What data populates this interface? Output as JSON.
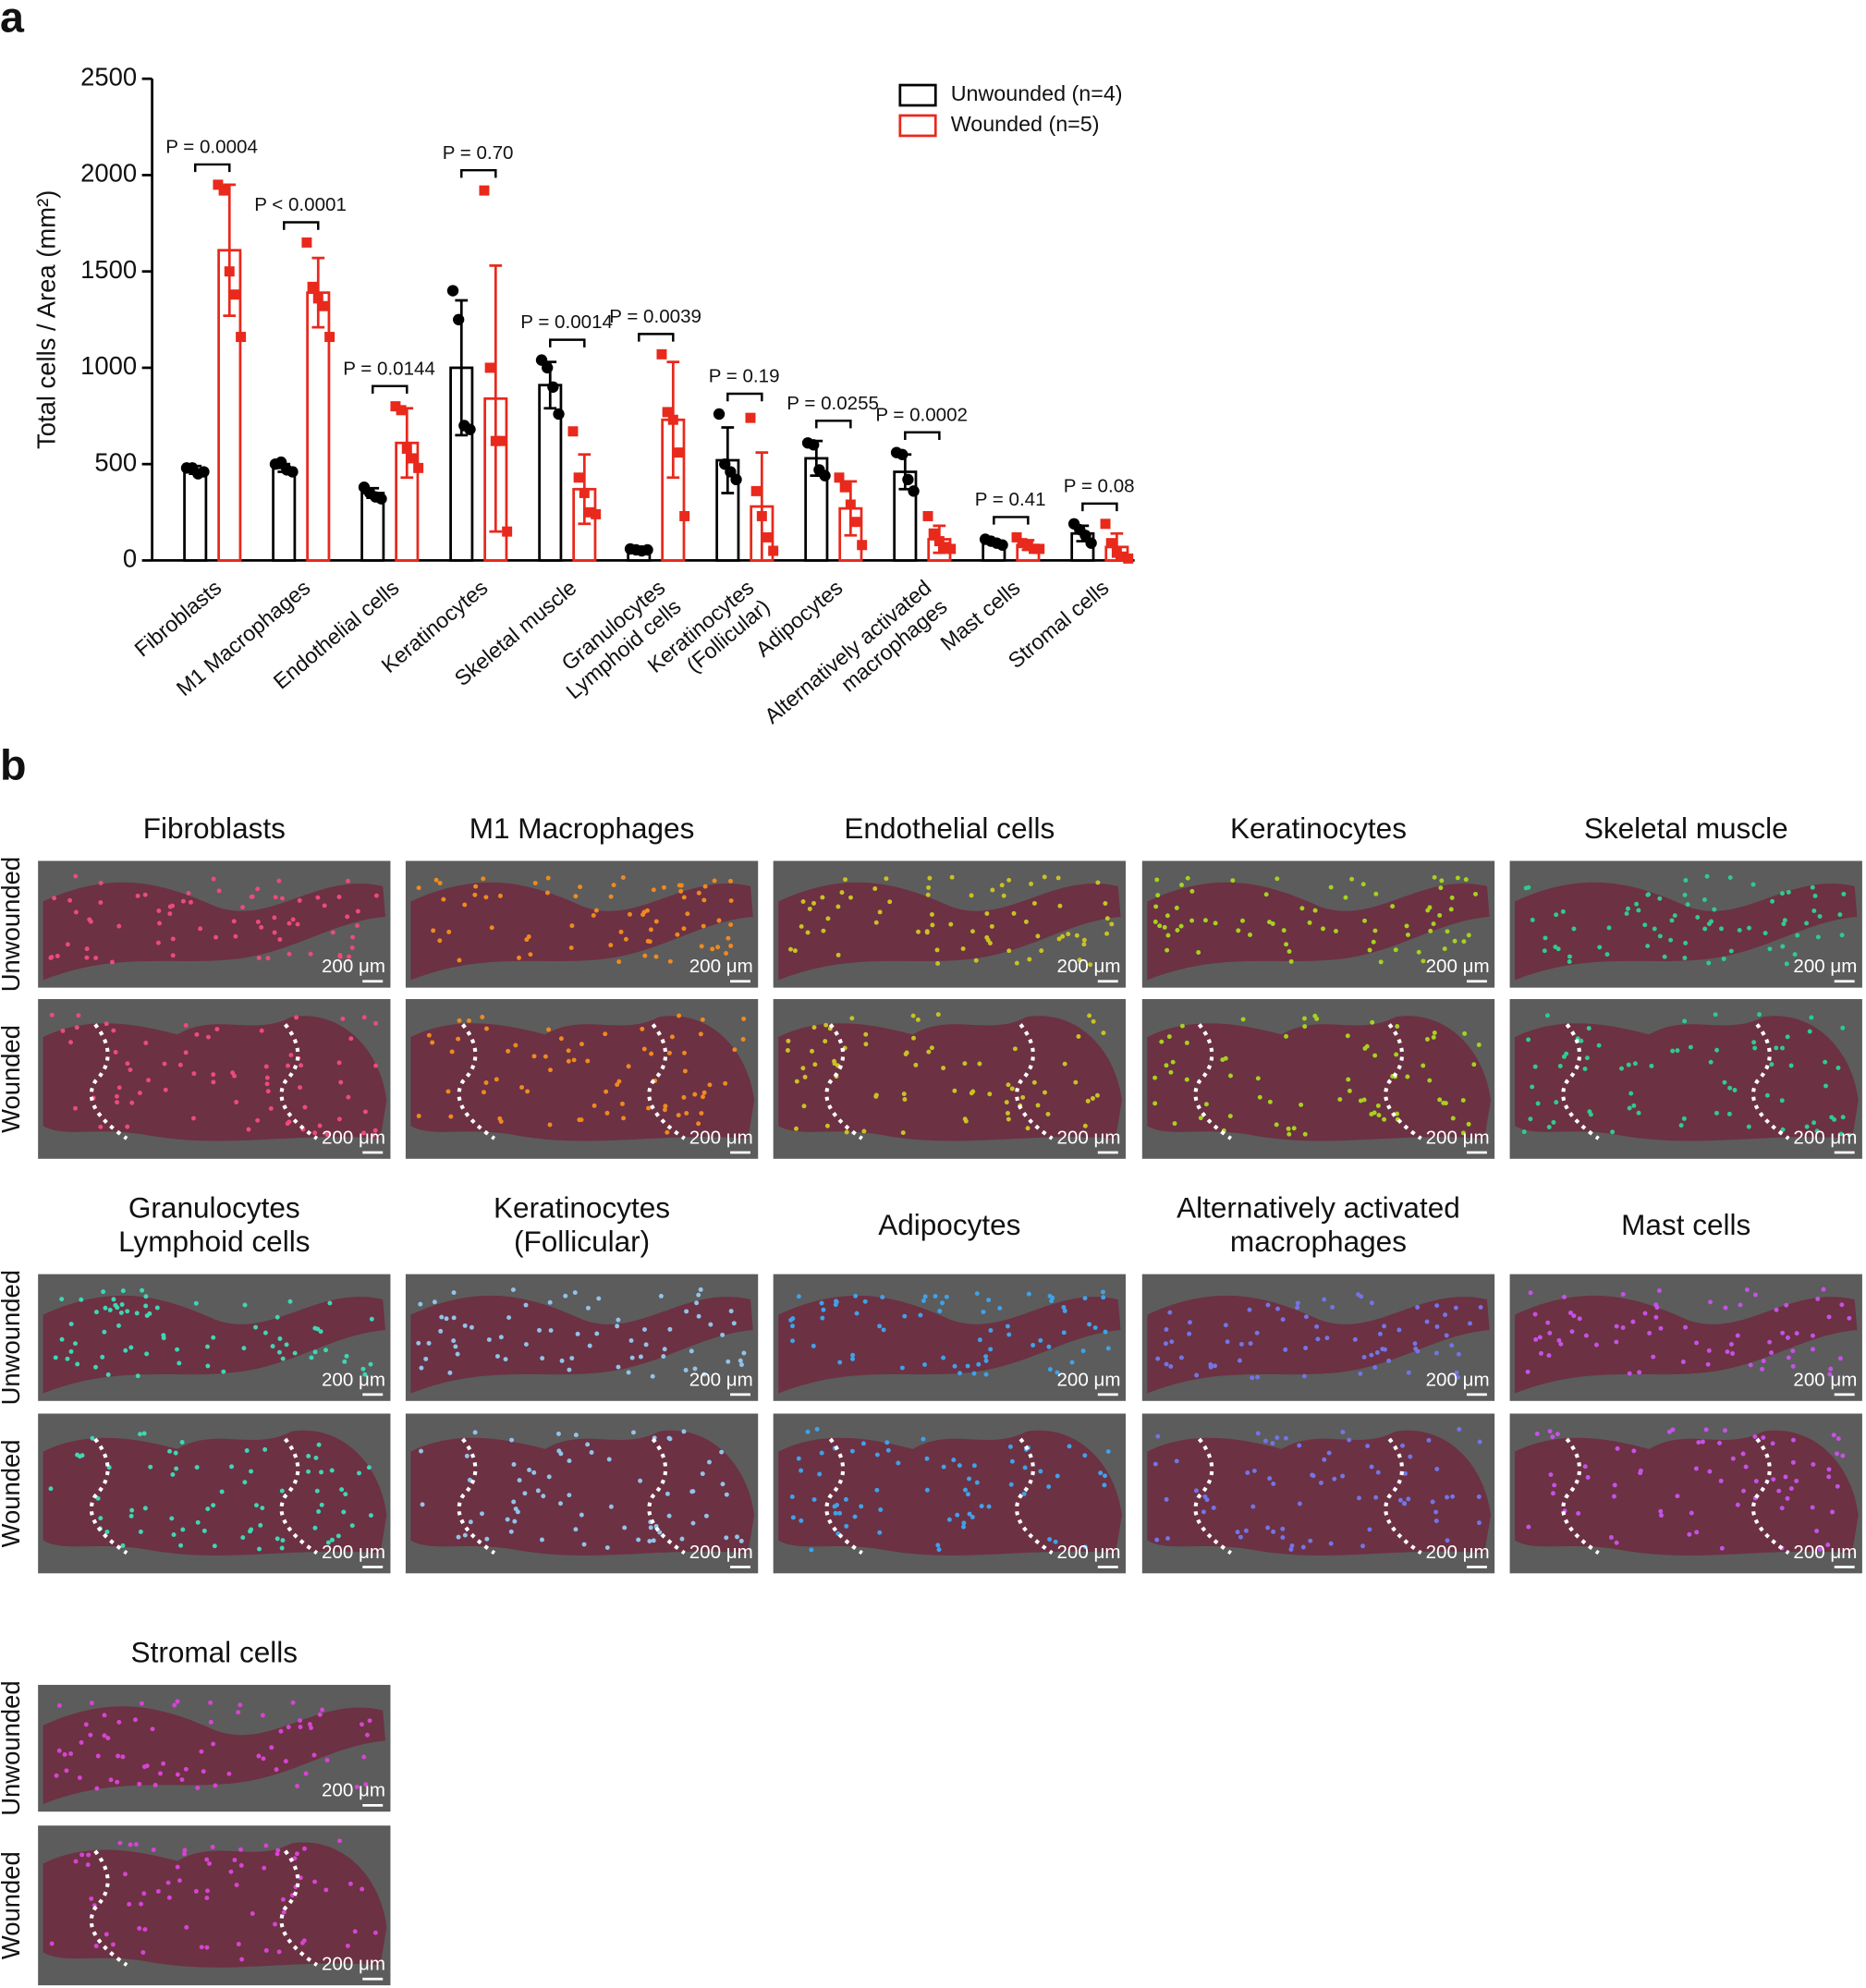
{
  "panel_labels": [
    "a",
    "b"
  ],
  "chart_data": {
    "type": "bar",
    "ylabel": "Total cells / Area (mm²)",
    "categories": [
      "Fibroblasts",
      "M1 Macrophages",
      "Endothelial cells",
      "Keratinocytes",
      "Skeletal muscle",
      "Granulocytes\nLymphoid cells",
      "Keratinocytes\n(Follicular)",
      "Adipocytes",
      "Alternatively activated\nmacrophages",
      "Mast cells",
      "Stromal cells"
    ],
    "series": [
      {
        "name": "Unwounded (n=4)",
        "color": "#000000",
        "values": [
          470,
          480,
          350,
          1000,
          910,
          55,
          520,
          530,
          460,
          95,
          140
        ],
        "errors": [
          20,
          20,
          25,
          350,
          120,
          8,
          170,
          90,
          90,
          12,
          40
        ],
        "points": [
          [
            480,
            480,
            450,
            460
          ],
          [
            500,
            510,
            470,
            460
          ],
          [
            380,
            350,
            330,
            320
          ],
          [
            1400,
            1250,
            700,
            680
          ],
          [
            1040,
            1000,
            900,
            760
          ],
          [
            60,
            55,
            50,
            55
          ],
          [
            760,
            500,
            460,
            420
          ],
          [
            610,
            600,
            470,
            440
          ],
          [
            560,
            550,
            420,
            360
          ],
          [
            110,
            100,
            90,
            80
          ],
          [
            190,
            160,
            130,
            90
          ]
        ]
      },
      {
        "name": "Wounded (n=5)",
        "color": "#e8291c",
        "values": [
          1610,
          1390,
          610,
          840,
          370,
          730,
          280,
          270,
          110,
          80,
          70
        ],
        "errors": [
          340,
          180,
          180,
          690,
          180,
          300,
          280,
          140,
          70,
          25,
          70
        ],
        "points": [
          [
            1950,
            1920,
            1500,
            1380,
            1160
          ],
          [
            1650,
            1420,
            1360,
            1320,
            1160
          ],
          [
            800,
            780,
            580,
            530,
            480
          ],
          [
            1920,
            1000,
            620,
            620,
            150
          ],
          [
            670,
            430,
            350,
            250,
            240
          ],
          [
            1070,
            770,
            730,
            560,
            230
          ],
          [
            740,
            360,
            230,
            120,
            50
          ],
          [
            430,
            380,
            290,
            200,
            80
          ],
          [
            230,
            140,
            100,
            70,
            60
          ],
          [
            120,
            90,
            80,
            60,
            60
          ],
          [
            190,
            90,
            40,
            20,
            10
          ]
        ]
      }
    ],
    "p_values": [
      "P = 0.0004",
      "P < 0.0001",
      "P = 0.0144",
      "P = 0.70",
      "P = 0.0014",
      "P = 0.0039",
      "P = 0.19",
      "P = 0.0255",
      "P = 0.0002",
      "P = 0.41",
      "P = 0.08"
    ],
    "ylim": [
      0,
      2500
    ],
    "yticks": [
      0,
      500,
      1000,
      1500,
      2000,
      2500
    ],
    "legend": "upper right",
    "grid": false
  },
  "micrographs": {
    "row_labels": [
      "Unwounded",
      "Wounded"
    ],
    "scale_label": "200 μm",
    "panels": [
      {
        "title": "Fibroblasts",
        "color": "#ec4b7c"
      },
      {
        "title": "M1 Macrophages",
        "color": "#f08a1e"
      },
      {
        "title": "Endothelial cells",
        "color": "#c9c223"
      },
      {
        "title": "Keratinocytes",
        "color": "#a6d21e"
      },
      {
        "title": "Skeletal muscle",
        "color": "#2fcb8f"
      },
      {
        "title": "Granulocytes\nLymphoid cells",
        "color": "#3fd6b4"
      },
      {
        "title": "Keratinocytes\n(Follicular)",
        "color": "#92c3ea"
      },
      {
        "title": "Adipocytes",
        "color": "#3fa2ea"
      },
      {
        "title": "Alternatively activated\nmacrophages",
        "color": "#7474e6"
      },
      {
        "title": "Mast cells",
        "color": "#c552e6"
      },
      {
        "title": "Stromal cells",
        "color": "#d744d2"
      }
    ]
  }
}
